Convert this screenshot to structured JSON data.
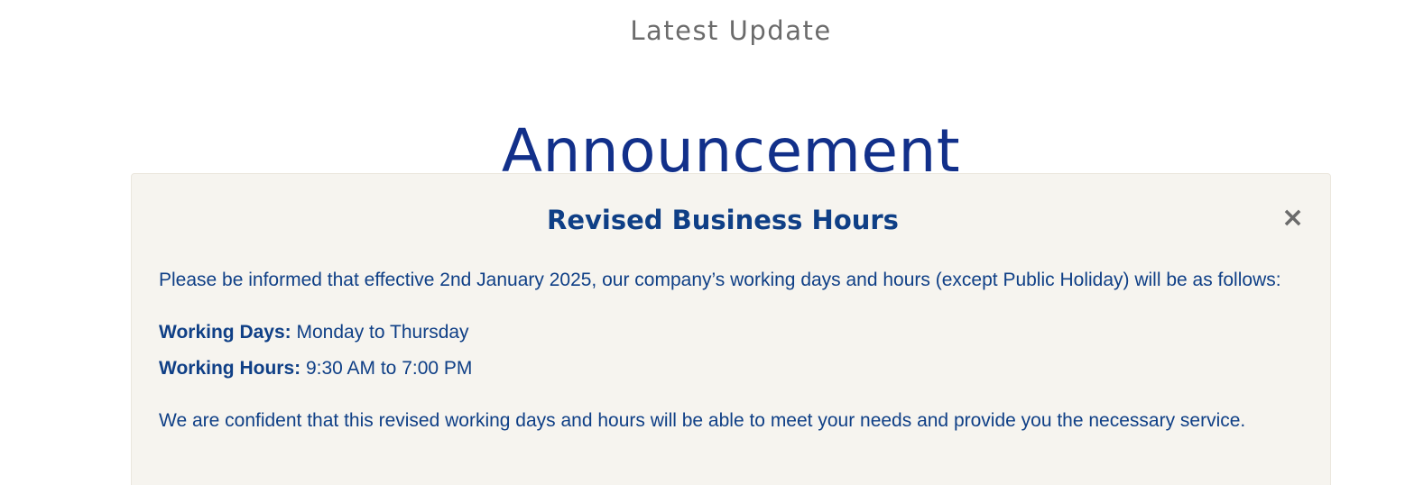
{
  "section": {
    "eyebrow": "Latest Update",
    "heading": "Announcement"
  },
  "notice": {
    "title": "Revised Business Hours",
    "close_glyph": "×",
    "close_icon": "close-icon",
    "intro": "Please be informed that effective 2nd January 2025, our company’s working days and hours (except Public Holiday) will be as follows:",
    "working_days_label": "Working Days:",
    "working_days_value": "Monday to Thursday",
    "working_hours_label": "Working Hours:",
    "working_hours_value": "9:30 AM to 7:00 PM",
    "closing": "We are confident that this revised working days and hours will be able to meet your needs and provide you the necessary service."
  },
  "colors": {
    "heading": "#12308a",
    "notice_text": "#0f3f86",
    "eyebrow": "#6b6b6b",
    "notice_background": "#f6f4ef"
  }
}
